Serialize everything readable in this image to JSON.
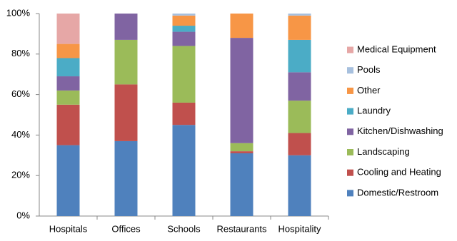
{
  "chart_data": {
    "type": "stacked_bar",
    "categories": [
      "Hospitals",
      "Offices",
      "Schools",
      "Restaurants",
      "Hospitality"
    ],
    "series": [
      {
        "name": "Domestic/Restroom",
        "color": "#4f81bd",
        "values": [
          35,
          37,
          45,
          31,
          30
        ]
      },
      {
        "name": "Cooling and Heating",
        "color": "#c0504d",
        "values": [
          20,
          28,
          11,
          1,
          11
        ]
      },
      {
        "name": "Landscaping",
        "color": "#9bbb59",
        "values": [
          7,
          22,
          28,
          4,
          16
        ]
      },
      {
        "name": "Kitchen/Dishwashing",
        "color": "#8064a2",
        "values": [
          7,
          13,
          7,
          52,
          14
        ]
      },
      {
        "name": "Laundry",
        "color": "#4bacc6",
        "values": [
          9,
          0,
          3,
          0,
          16
        ]
      },
      {
        "name": "Other",
        "color": "#f79646",
        "values": [
          7,
          0,
          5,
          12,
          12
        ]
      },
      {
        "name": "Pools",
        "color": "#a7c0de",
        "values": [
          0,
          0,
          1,
          0,
          1
        ]
      },
      {
        "name": "Medical Equipment",
        "color": "#e6a7a6",
        "values": [
          15,
          0,
          0,
          0,
          0
        ]
      }
    ],
    "ylim": [
      0,
      100
    ],
    "yticks": [
      {
        "value": 0,
        "label": "0%"
      },
      {
        "value": 20,
        "label": "20%"
      },
      {
        "value": 40,
        "label": "40%"
      },
      {
        "value": 60,
        "label": "60%"
      },
      {
        "value": 80,
        "label": "80%"
      },
      {
        "value": 100,
        "label": "100%"
      }
    ],
    "grid": false,
    "legend": "right"
  }
}
